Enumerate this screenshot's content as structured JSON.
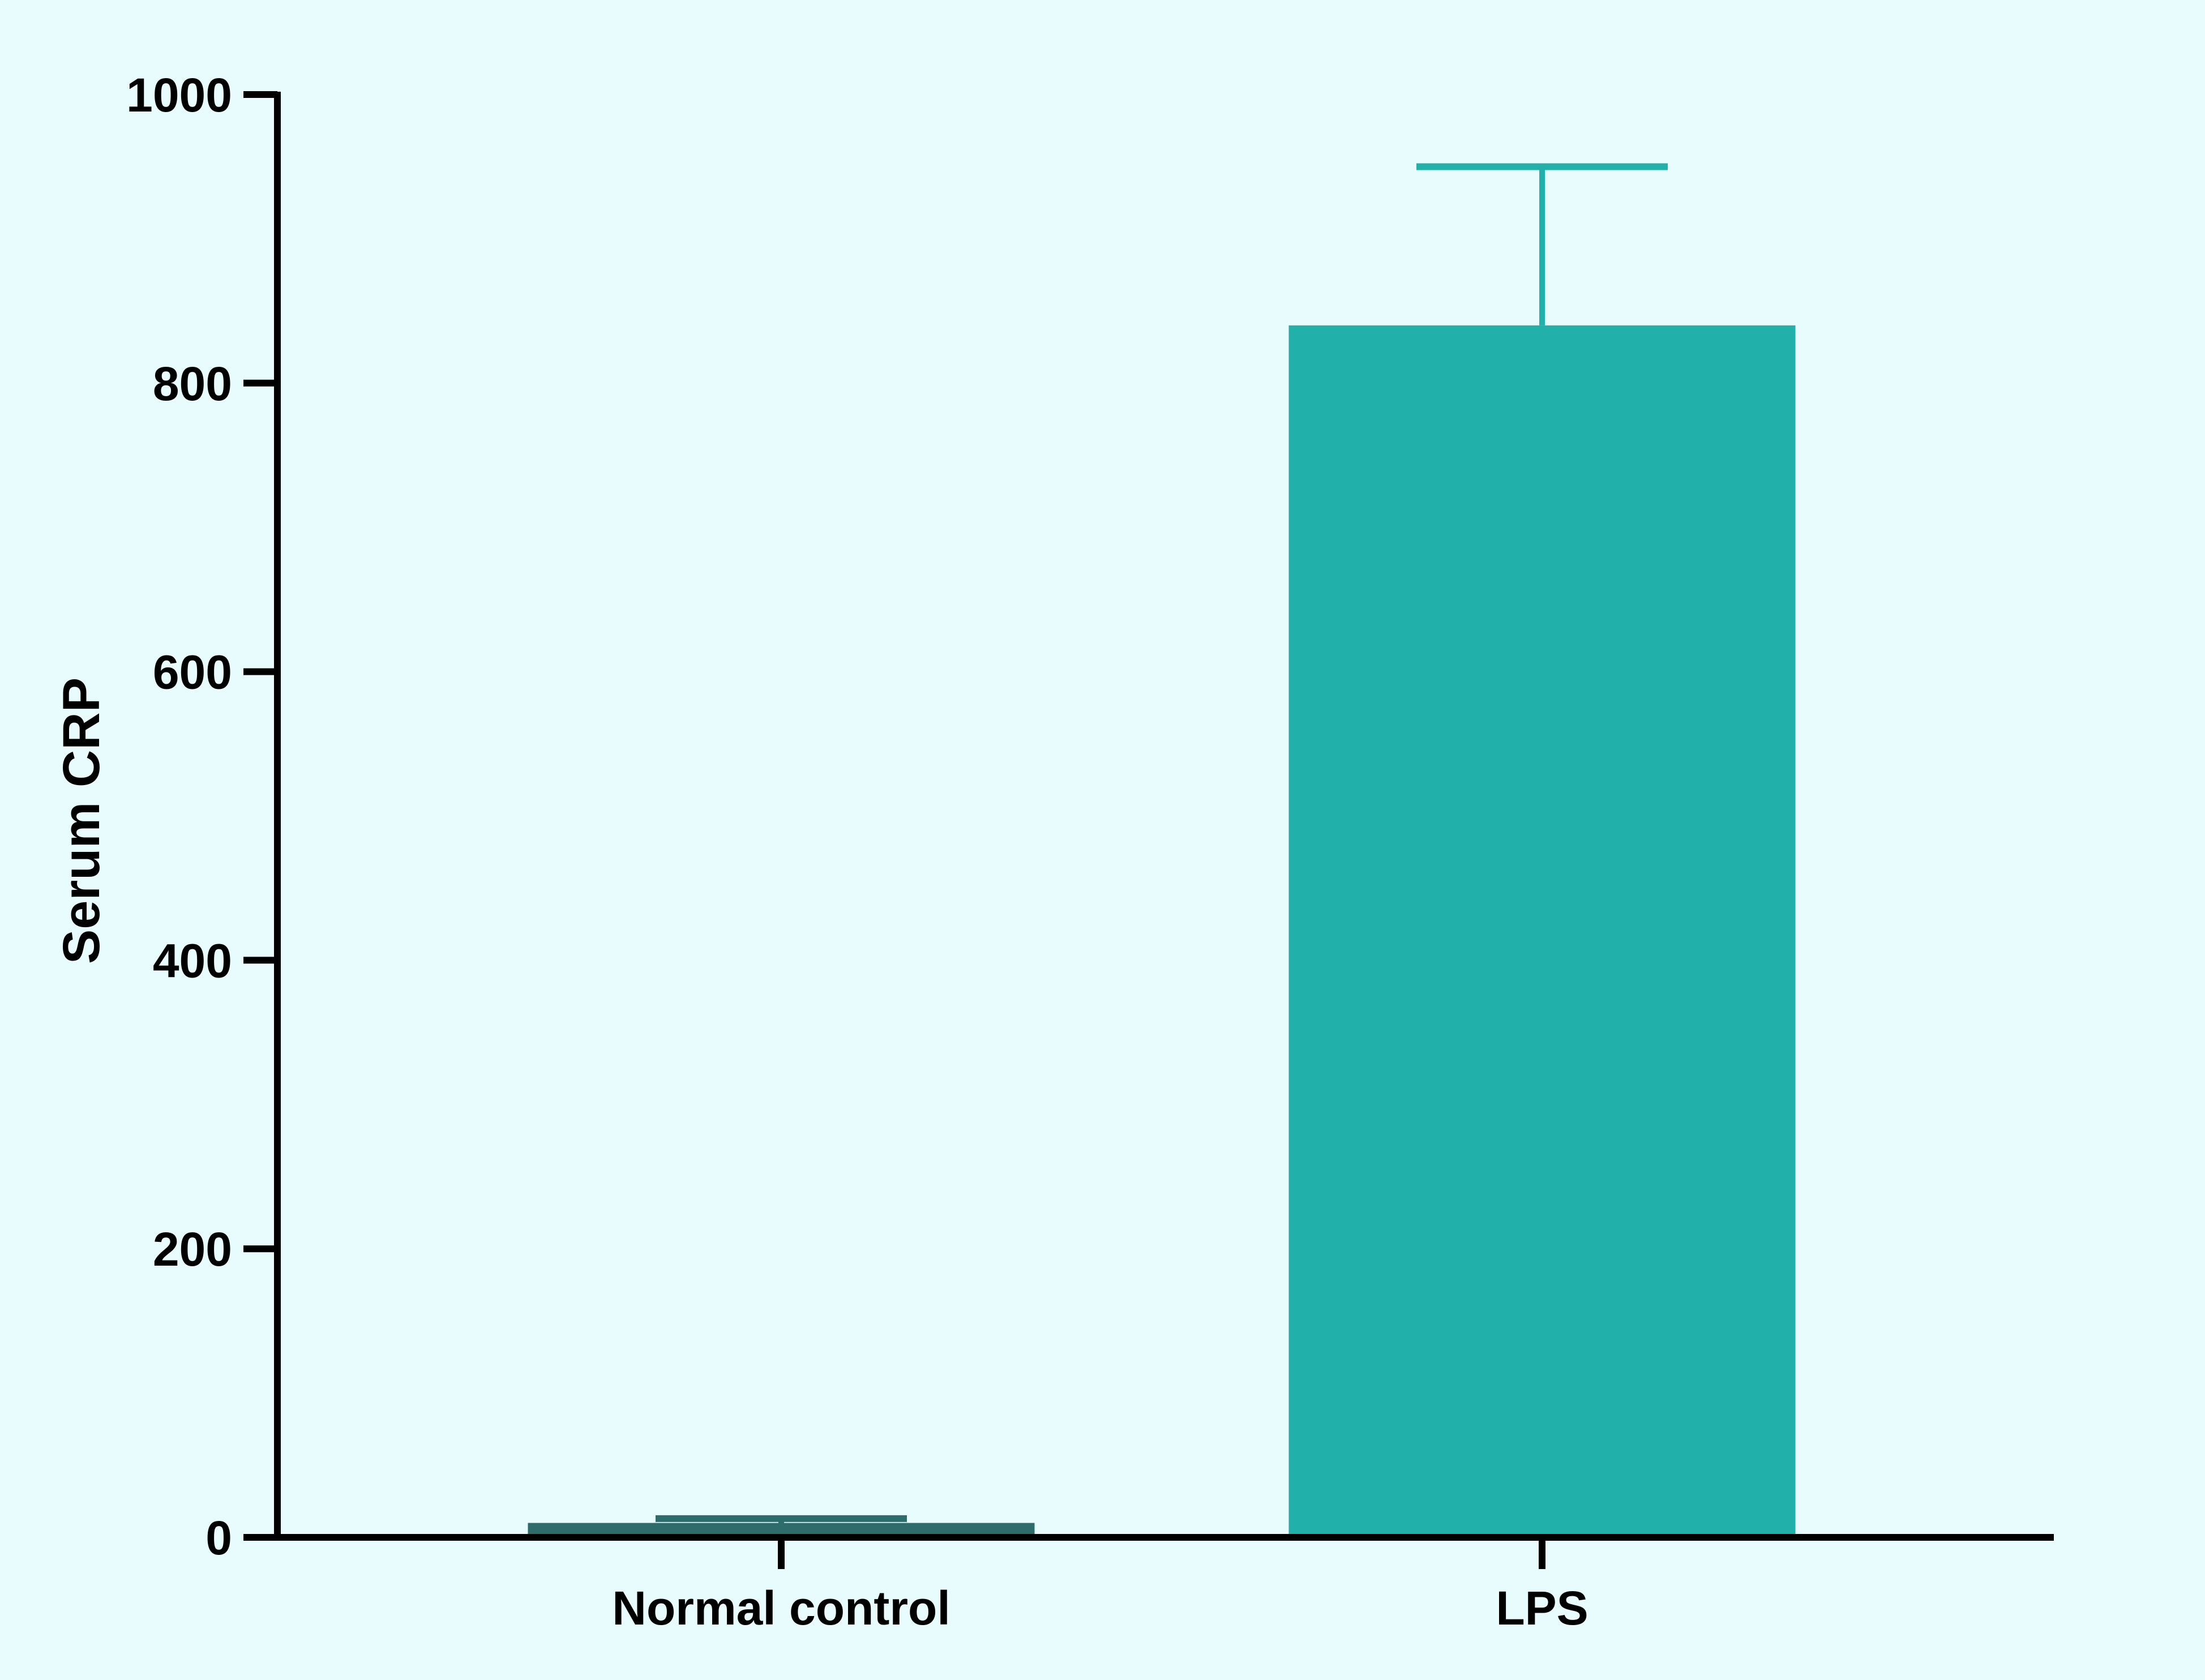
{
  "chart_data": {
    "type": "bar",
    "title": "",
    "xlabel": "",
    "ylabel": "Serum CRP",
    "ylim": [
      0,
      1000
    ],
    "yticks": [
      0,
      200,
      400,
      600,
      800,
      1000
    ],
    "categories": [
      "Normal control",
      "LPS"
    ],
    "values": [
      10,
      840
    ],
    "error_upper": [
      13,
      950
    ],
    "bar_colors": [
      "#2e6b6b",
      "#21b0aa"
    ],
    "grid": false,
    "legend": "none"
  },
  "colors": {
    "background": "#e8fcfd",
    "axis": "#000000"
  }
}
